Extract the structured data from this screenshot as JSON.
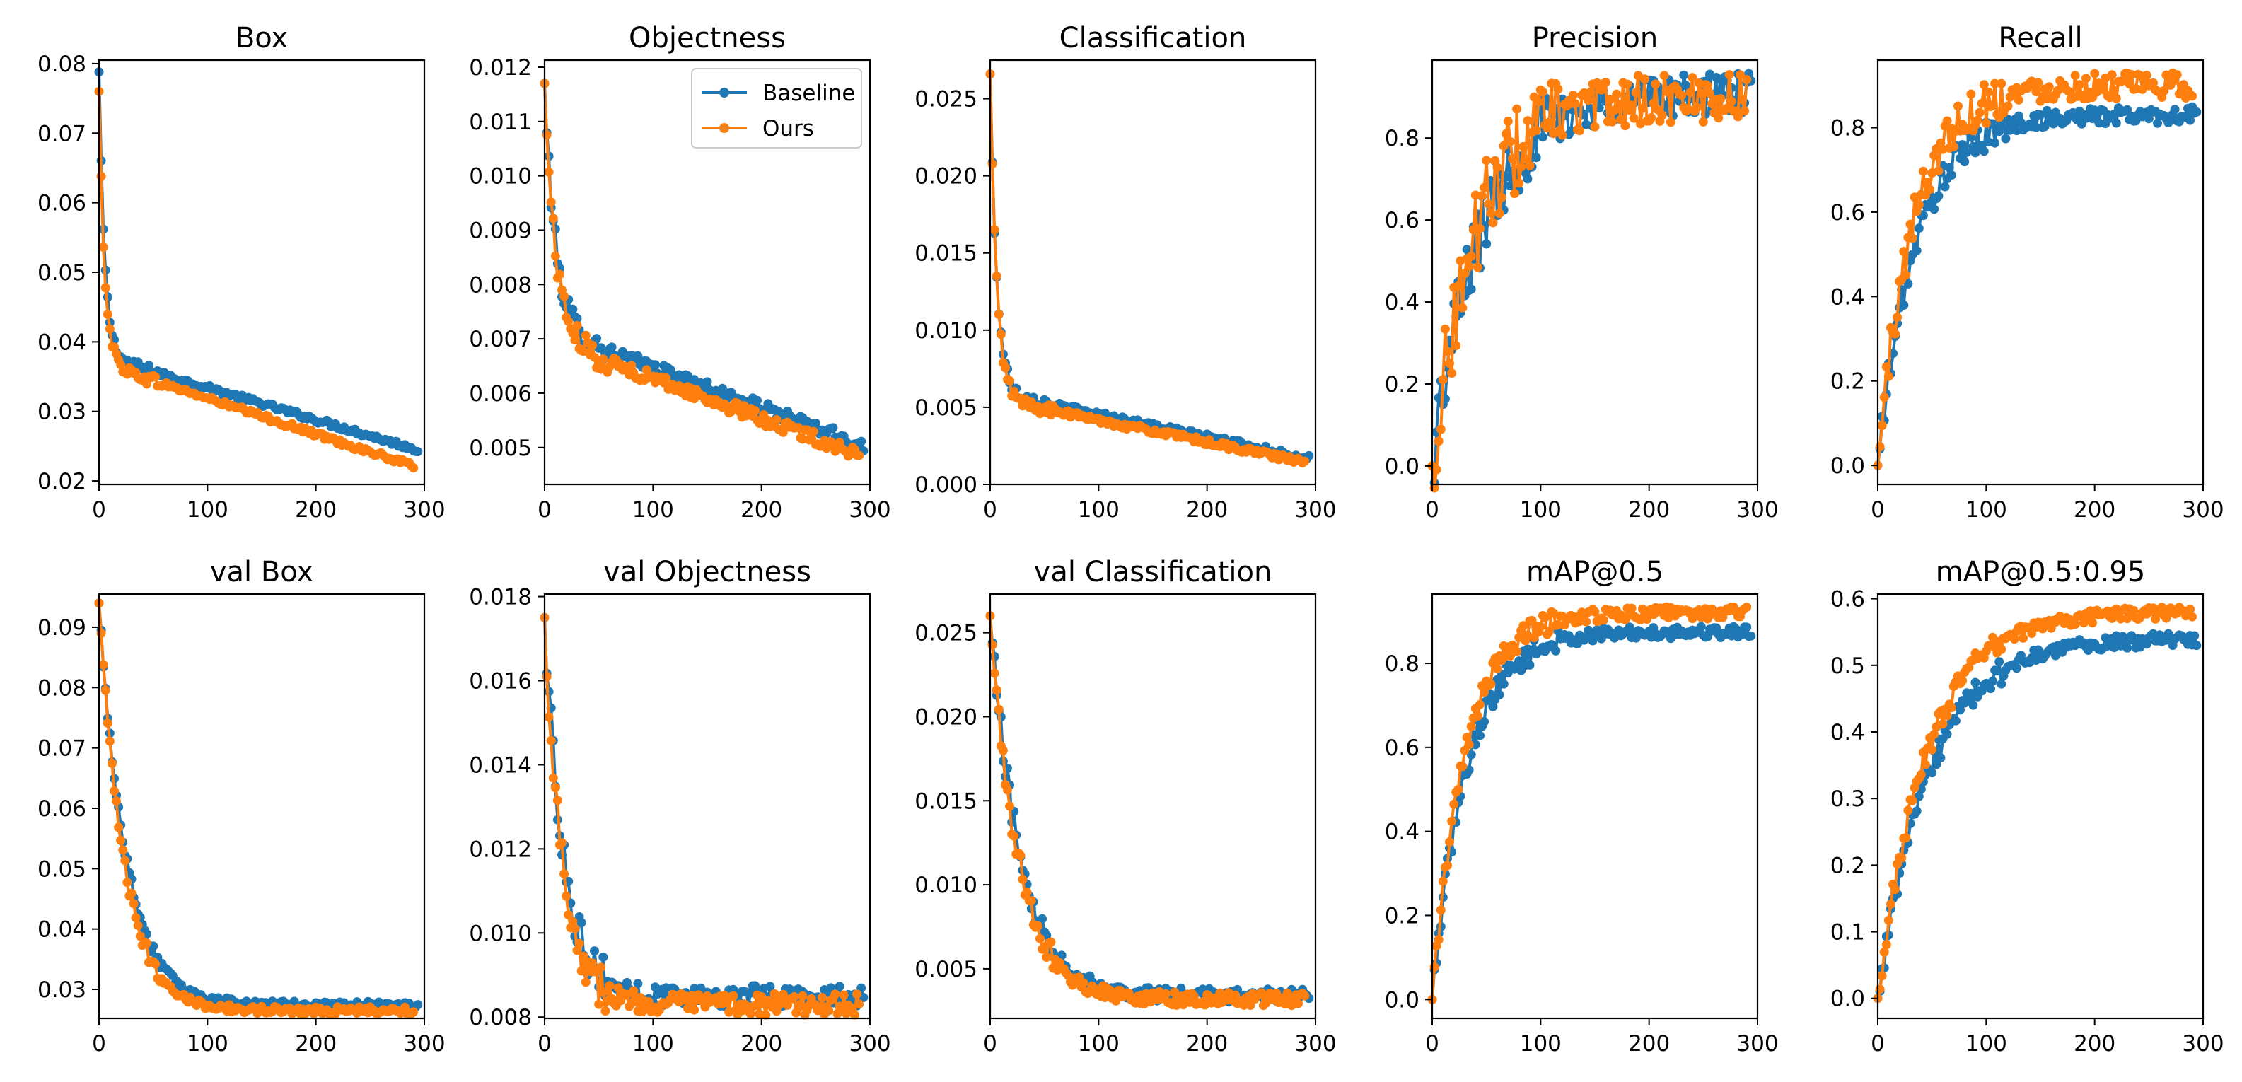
{
  "figure": {
    "series_colors": {
      "Baseline": "#1f77b4",
      "Ours": "#ff7f0e"
    },
    "legend": {
      "entries": [
        "Baseline",
        "Ours"
      ],
      "location": "upper-right",
      "panel": "Objectness"
    }
  },
  "chart_data": [
    {
      "type": "line",
      "title": "Box",
      "xlim": [
        0,
        300
      ],
      "ylim": [
        0.0195,
        0.0805
      ],
      "xticks": [
        "0",
        "100",
        "200",
        "300"
      ],
      "yticks": [
        "0.02",
        "0.03",
        "0.04",
        "0.05",
        "0.06",
        "0.07",
        "0.08"
      ],
      "series": [
        {
          "name": "Baseline",
          "start": 0.0788,
          "end": 0.0242,
          "knee": 0.038,
          "tau": 5.0,
          "noise": 0.0004,
          "x_end": 295
        },
        {
          "name": "Ours",
          "start": 0.076,
          "end": 0.0216,
          "knee": 0.037,
          "tau": 5.0,
          "noise": 0.0004,
          "x_end": 290
        }
      ]
    },
    {
      "type": "line",
      "title": "Objectness",
      "xlim": [
        0,
        300
      ],
      "ylim": [
        0.00432,
        0.01213
      ],
      "xticks": [
        "0",
        "100",
        "200",
        "300"
      ],
      "yticks": [
        "0.005",
        "0.006",
        "0.007",
        "0.008",
        "0.009",
        "0.010",
        "0.011",
        "0.012"
      ],
      "series": [
        {
          "name": "Baseline",
          "start": 0.0117,
          "end": 0.005,
          "knee": 0.0072,
          "tau": 10.0,
          "noise": 0.00012,
          "x_end": 295
        },
        {
          "name": "Ours",
          "start": 0.0117,
          "end": 0.0048,
          "knee": 0.007,
          "tau": 10.0,
          "noise": 0.00012,
          "x_end": 290
        }
      ]
    },
    {
      "type": "line",
      "title": "Classification",
      "xlim": [
        0,
        300
      ],
      "ylim": [
        0.0,
        0.0275
      ],
      "xticks": [
        "0",
        "100",
        "200",
        "300"
      ],
      "yticks": [
        "0.000",
        "0.005",
        "0.010",
        "0.015",
        "0.020",
        "0.025"
      ],
      "series": [
        {
          "name": "Baseline",
          "start": 0.0266,
          "end": 0.0016,
          "knee": 0.006,
          "tau": 6.0,
          "noise": 0.0002,
          "x_end": 295
        },
        {
          "name": "Ours",
          "start": 0.0266,
          "end": 0.0013,
          "knee": 0.0056,
          "tau": 6.0,
          "noise": 0.0002,
          "x_end": 290
        }
      ]
    },
    {
      "type": "line",
      "title": "Precision",
      "xlim": [
        0,
        300
      ],
      "ylim": [
        -0.045,
        0.99
      ],
      "xticks": [
        "0",
        "100",
        "200",
        "300"
      ],
      "yticks": [
        "0.0",
        "0.2",
        "0.4",
        "0.6",
        "0.8"
      ],
      "series": [
        {
          "name": "Baseline",
          "start": 0.0,
          "end": 0.91,
          "tau": 45,
          "noise": 0.05,
          "x_end": 295
        },
        {
          "name": "Ours",
          "start": 0.0,
          "end": 0.9,
          "tau": 40,
          "noise": 0.06,
          "x_end": 290
        }
      ]
    },
    {
      "type": "line",
      "title": "Recall",
      "xlim": [
        0,
        300
      ],
      "ylim": [
        -0.045,
        0.96
      ],
      "xticks": [
        "0",
        "100",
        "200",
        "300"
      ],
      "yticks": [
        "0.0",
        "0.2",
        "0.4",
        "0.6",
        "0.8"
      ],
      "series": [
        {
          "name": "Baseline",
          "start": 0.0,
          "end": 0.83,
          "tau": 35,
          "noise": 0.02,
          "x_end": 295
        },
        {
          "name": "Ours",
          "start": 0.0,
          "end": 0.9,
          "tau": 32,
          "noise": 0.03,
          "x_end": 290
        }
      ]
    },
    {
      "type": "line",
      "title": "val Box",
      "xlim": [
        0,
        300
      ],
      "ylim": [
        0.0252,
        0.0955
      ],
      "xticks": [
        "0",
        "100",
        "200",
        "300"
      ],
      "yticks": [
        "0.03",
        "0.04",
        "0.05",
        "0.06",
        "0.07",
        "0.08",
        "0.09"
      ],
      "series": [
        {
          "name": "Baseline",
          "start": 0.094,
          "end": 0.0274,
          "tau": 25,
          "noise": 0.0006,
          "x_end": 295
        },
        {
          "name": "Ours",
          "start": 0.094,
          "end": 0.0265,
          "tau": 23,
          "noise": 0.0006,
          "x_end": 290
        }
      ]
    },
    {
      "type": "line",
      "title": "val Objectness",
      "xlim": [
        0,
        300
      ],
      "ylim": [
        0.00797,
        0.01806
      ],
      "xticks": [
        "0",
        "100",
        "200",
        "300"
      ],
      "yticks": [
        "0.008",
        "0.010",
        "0.012",
        "0.014",
        "0.016",
        "0.018"
      ],
      "series": [
        {
          "name": "Baseline",
          "start": 0.0175,
          "end": 0.0085,
          "tau": 18,
          "noise": 0.00025,
          "x_end": 295
        },
        {
          "name": "Ours",
          "start": 0.0175,
          "end": 0.0083,
          "tau": 17,
          "noise": 0.00025,
          "x_end": 290
        }
      ]
    },
    {
      "type": "line",
      "title": "val Classification",
      "xlim": [
        0,
        300
      ],
      "ylim": [
        0.00205,
        0.0273
      ],
      "xticks": [
        "0",
        "100",
        "200",
        "300"
      ],
      "yticks": [
        "0.005",
        "0.010",
        "0.015",
        "0.020",
        "0.025"
      ],
      "series": [
        {
          "name": "Baseline",
          "start": 0.026,
          "end": 0.0034,
          "tau": 28,
          "noise": 0.0004,
          "x_end": 295
        },
        {
          "name": "Ours",
          "start": 0.026,
          "end": 0.0032,
          "tau": 26,
          "noise": 0.0004,
          "x_end": 290
        }
      ]
    },
    {
      "type": "line",
      "title": "mAP@0.5",
      "xlim": [
        0,
        300
      ],
      "ylim": [
        -0.045,
        0.965
      ],
      "xticks": [
        "0",
        "100",
        "200",
        "300"
      ],
      "yticks": [
        "0.0",
        "0.2",
        "0.4",
        "0.6",
        "0.8"
      ],
      "series": [
        {
          "name": "Baseline",
          "start": 0.0,
          "end": 0.875,
          "tau": 32,
          "noise": 0.015,
          "x_end": 295
        },
        {
          "name": "Ours",
          "start": 0.0,
          "end": 0.92,
          "tau": 30,
          "noise": 0.015,
          "x_end": 290
        }
      ]
    },
    {
      "type": "line",
      "title": "mAP@0.5:0.95",
      "xlim": [
        0,
        300
      ],
      "ylim": [
        -0.03,
        0.607
      ],
      "xticks": [
        "0",
        "100",
        "200",
        "300"
      ],
      "yticks": [
        "0.0",
        "0.1",
        "0.2",
        "0.3",
        "0.4",
        "0.5",
        "0.6"
      ],
      "series": [
        {
          "name": "Baseline",
          "start": 0.0,
          "end": 0.54,
          "tau": 48,
          "noise": 0.01,
          "x_end": 295
        },
        {
          "name": "Ours",
          "start": 0.0,
          "end": 0.58,
          "tau": 45,
          "noise": 0.01,
          "x_end": 290
        }
      ]
    }
  ]
}
